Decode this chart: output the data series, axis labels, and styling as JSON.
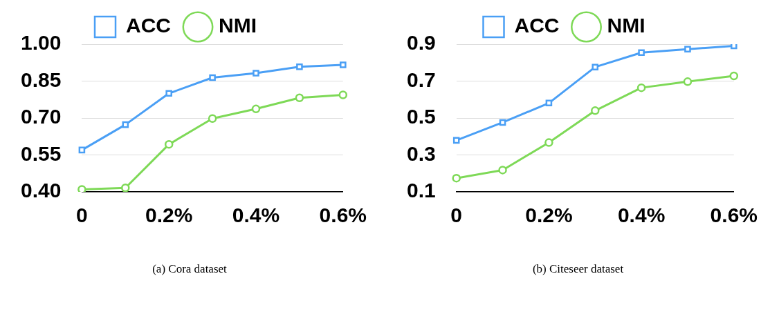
{
  "chart_data": [
    {
      "type": "line",
      "categories": [
        "0",
        null,
        "0.2%",
        null,
        "0.4%",
        null,
        "0.6%"
      ],
      "series": [
        {
          "name": "ACC",
          "color": "#4a9ff5",
          "marker": "square",
          "values": [
            0.57,
            0.673,
            0.8,
            0.864,
            0.882,
            0.908,
            0.916
          ]
        },
        {
          "name": "NMI",
          "color": "#7ed957",
          "marker": "circle",
          "values": [
            0.41,
            0.416,
            0.593,
            0.698,
            0.737,
            0.782,
            0.794
          ]
        }
      ],
      "ylim": [
        0.4,
        1.0
      ],
      "yticks": [
        {
          "value": 0.4,
          "label": "0.40"
        },
        {
          "value": 0.55,
          "label": "0.55"
        },
        {
          "value": 0.7,
          "label": "0.70"
        },
        {
          "value": 0.85,
          "label": "0.85"
        },
        {
          "value": 1.0,
          "label": "1.00"
        }
      ],
      "grid": "y",
      "legend": "top",
      "line_style": "solid",
      "annotations": [
        "(a) Cora dataset"
      ]
    },
    {
      "type": "line",
      "categories": [
        "0",
        null,
        "0.2%",
        null,
        "0.4%",
        null,
        "0.6%"
      ],
      "series": [
        {
          "name": "ACC",
          "color": "#4a9ff5",
          "marker": "square",
          "values": [
            0.379,
            0.476,
            0.581,
            0.776,
            0.854,
            0.873,
            0.891
          ]
        },
        {
          "name": "NMI",
          "color": "#7ed957",
          "marker": "circle",
          "values": [
            0.174,
            0.218,
            0.367,
            0.54,
            0.664,
            0.697,
            0.728
          ]
        }
      ],
      "ylim": [
        0.1,
        0.9
      ],
      "yticks": [
        0.1,
        0.3,
        0.5,
        0.7,
        0.9
      ],
      "grid": "y",
      "legend": "top",
      "line_style": "solid",
      "annotations": [
        "(b) Citeseer dataset"
      ]
    }
  ]
}
